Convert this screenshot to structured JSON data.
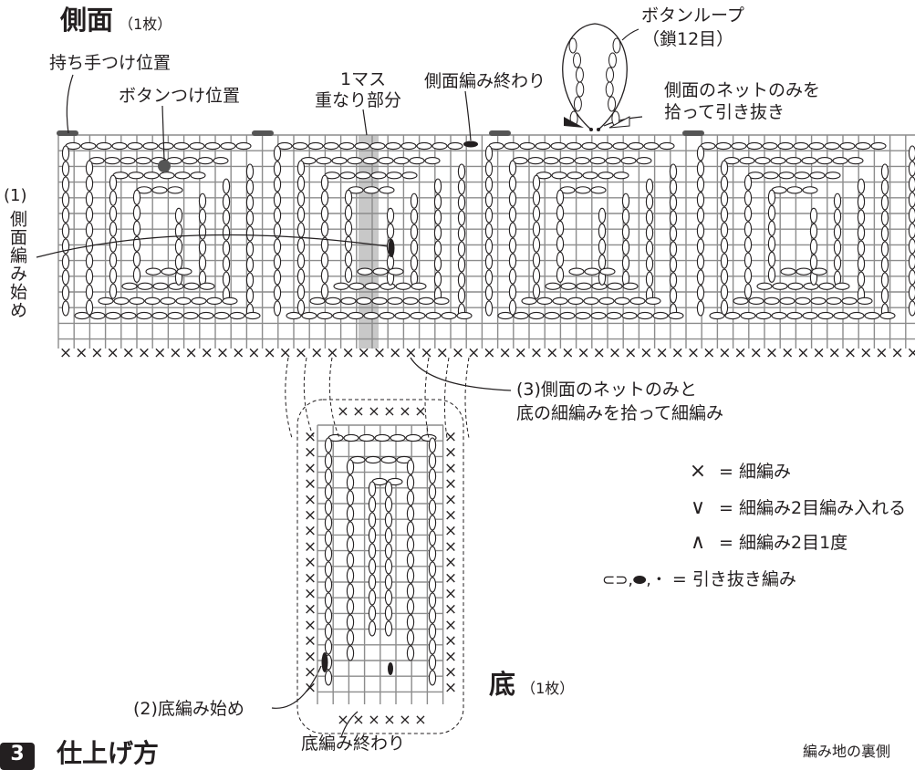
{
  "side": {
    "title": "側面",
    "count": "（1枚）"
  },
  "bottom": {
    "title": "底",
    "count": "（1枚）"
  },
  "labels": {
    "handle_position": "持ち手つけ位置",
    "button_position": "ボタンつけ位置",
    "overlap_line1": "1マス",
    "overlap_line2": "重なり部分",
    "side_end": "側面編み終わり",
    "button_loop_line1": "ボタンループ",
    "button_loop_line2": "（鎖12目）",
    "pickup_line1": "側面のネットのみを",
    "pickup_line2": "拾って引き抜き",
    "side_start_num": "(1)",
    "side_start_text": "側面編み始め",
    "join_line1": "(3)側面のネットのみと",
    "join_line2": "底の細編みを拾って細編み",
    "bottom_start": "(2)底編み始め",
    "bottom_end": "底編み終わり"
  },
  "legend": [
    {
      "symbol": "×",
      "text": "細編み"
    },
    {
      "symbol": "∨",
      "text": "細編み2目編み入れる"
    },
    {
      "symbol": "∧",
      "text": "細編み2目1度"
    },
    {
      "symbol": "⊂⊃,⬬,・",
      "text": "引き抜き編み"
    }
  ],
  "footer": {
    "badge": "3",
    "heading": "仕上げ方",
    "right_note": "編み地の裏側"
  },
  "colors": {
    "line": "#231f20",
    "grid": "#8c8c8c",
    "overlap": "#c8c8c8",
    "badge": "#231f20"
  }
}
